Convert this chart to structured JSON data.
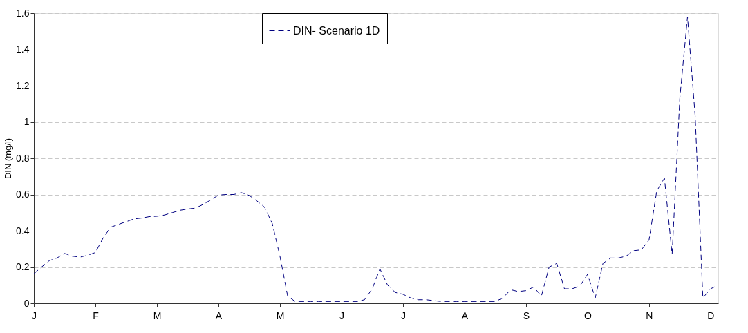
{
  "chart_data": {
    "type": "line",
    "ylabel": "DIN (mg/l)",
    "categories": [
      "J",
      null,
      null,
      null,
      null,
      null,
      null,
      null,
      "F",
      null,
      null,
      null,
      null,
      null,
      null,
      null,
      "M",
      null,
      null,
      null,
      null,
      null,
      null,
      null,
      "A",
      null,
      null,
      null,
      null,
      null,
      null,
      null,
      "M",
      null,
      null,
      null,
      null,
      null,
      null,
      null,
      "J",
      null,
      null,
      null,
      null,
      null,
      null,
      null,
      "J",
      null,
      null,
      null,
      null,
      null,
      null,
      null,
      "A",
      null,
      null,
      null,
      null,
      null,
      null,
      null,
      "S",
      null,
      null,
      null,
      null,
      null,
      null,
      null,
      "O",
      null,
      null,
      null,
      null,
      null,
      null,
      null,
      "N",
      null,
      null,
      null,
      null,
      null,
      null,
      null,
      "D",
      null
    ],
    "ylim": [
      0,
      1.6
    ],
    "yticks": [
      0,
      0.2,
      0.4,
      0.6,
      0.8,
      {
        "value": 1,
        "label": "1"
      },
      1.2,
      1.4,
      1.6
    ],
    "grid": "y",
    "legend": "top",
    "line_style": "dashed",
    "series": [
      {
        "name": "DIN- Scenario 1D",
        "color": "#000080",
        "values": [
          0.163,
          0.2,
          0.235,
          0.25,
          0.275,
          0.26,
          0.255,
          0.265,
          0.28,
          0.36,
          0.42,
          0.435,
          0.45,
          0.465,
          0.47,
          0.478,
          0.48,
          0.487,
          0.5,
          0.513,
          0.52,
          0.525,
          0.545,
          0.57,
          0.597,
          0.6,
          0.6,
          0.61,
          0.595,
          0.565,
          0.53,
          0.44,
          0.26,
          0.04,
          0.01,
          0.01,
          0.01,
          0.01,
          0.01,
          0.01,
          0.01,
          0.01,
          0.01,
          0.02,
          0.08,
          0.19,
          0.1,
          0.06,
          0.05,
          0.03,
          0.02,
          0.02,
          0.015,
          0.01,
          0.01,
          0.01,
          0.01,
          0.01,
          0.01,
          0.01,
          0.01,
          0.03,
          0.075,
          0.065,
          0.07,
          0.09,
          0.04,
          0.2,
          0.22,
          0.08,
          0.08,
          0.095,
          0.16,
          0.03,
          0.22,
          0.25,
          0.25,
          0.26,
          0.29,
          0.295,
          0.35,
          0.62,
          0.69,
          0.27,
          1.13,
          1.58,
          1.03,
          0.03,
          0.08,
          0.1
        ]
      }
    ]
  }
}
